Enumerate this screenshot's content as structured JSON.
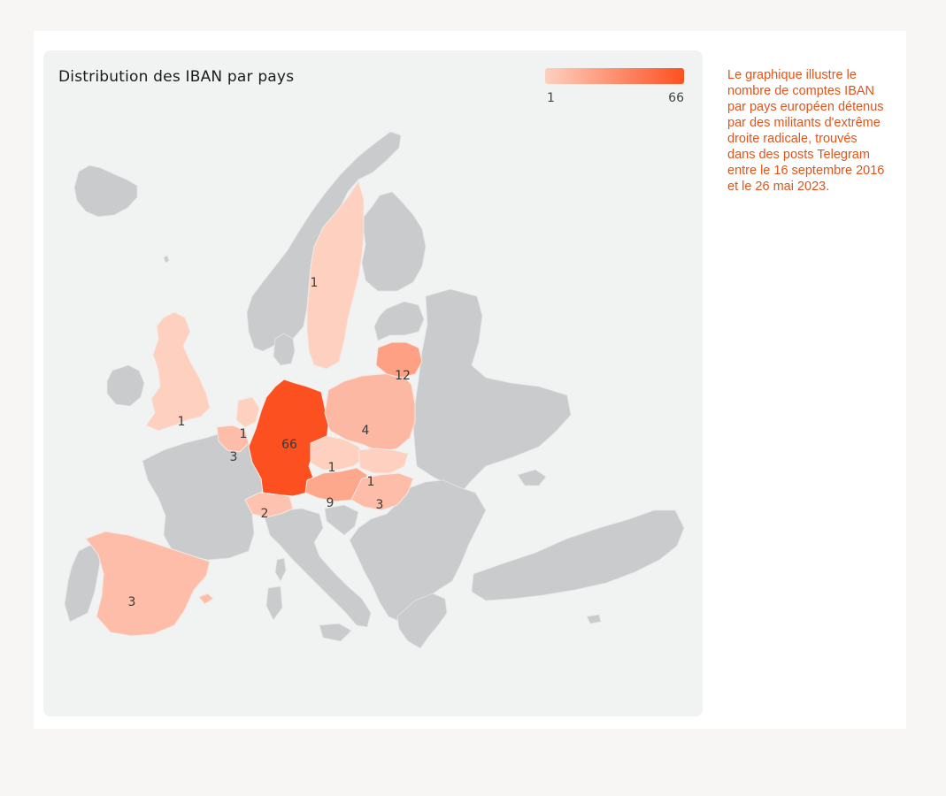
{
  "map": {
    "title": "Distribution des IBAN par pays",
    "legend": {
      "min": "1",
      "max": "66",
      "color_min": "#fdd0c0",
      "color_max": "#fd5020"
    },
    "no_data_color": "#cacbcd",
    "countries": [
      {
        "id": "de",
        "name": "Germany",
        "value": 66,
        "label": "66"
      },
      {
        "id": "lt",
        "name": "Lithuania",
        "value": 12,
        "label": "12"
      },
      {
        "id": "at",
        "name": "Austria",
        "value": 9,
        "label": "9"
      },
      {
        "id": "pl",
        "name": "Poland",
        "value": 4,
        "label": "4"
      },
      {
        "id": "es",
        "name": "Spain",
        "value": 3,
        "label": "3"
      },
      {
        "id": "be",
        "name": "Belgium",
        "value": 3,
        "label": "3"
      },
      {
        "id": "hu",
        "name": "Hungary",
        "value": 3,
        "label": "3"
      },
      {
        "id": "ch",
        "name": "Switzerland",
        "value": 2,
        "label": "2"
      },
      {
        "id": "se",
        "name": "Sweden",
        "value": 1,
        "label": "1"
      },
      {
        "id": "gb",
        "name": "United Kingdom",
        "value": 1,
        "label": "1"
      },
      {
        "id": "nl",
        "name": "Netherlands",
        "value": 1,
        "label": "1"
      },
      {
        "id": "cz",
        "name": "Czechia",
        "value": 1,
        "label": "1"
      },
      {
        "id": "sk",
        "name": "Slovakia",
        "value": 1,
        "label": "1"
      }
    ]
  },
  "description": "Le graphique illustre le nombre de comptes IBAN par pays européen détenus par des militants d'extrême droite radicale, trouvés dans des posts Telegram entre le 16 septembre 2016 et le 26 mai 2023."
}
